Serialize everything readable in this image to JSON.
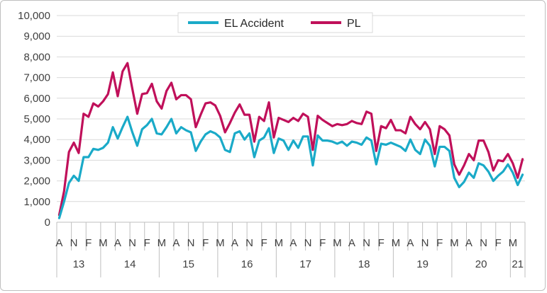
{
  "chart_data": {
    "type": "line",
    "title": "",
    "xlabel": "",
    "ylabel": "",
    "ylim": [
      0,
      10000
    ],
    "y_ticks": [
      "0",
      "1,000",
      "2,000",
      "3,000",
      "4,000",
      "5,000",
      "6,000",
      "7,000",
      "8,000",
      "9,000",
      "10,000"
    ],
    "grid": "horizontal",
    "legend_position": "top-center",
    "month_labels": [
      "A",
      "N",
      "F",
      "M",
      "A",
      "N",
      "F",
      "M",
      "A",
      "N",
      "F",
      "M",
      "A",
      "N",
      "F",
      "M",
      "A",
      "N",
      "F",
      "M",
      "A",
      "N",
      "F",
      "M",
      "A",
      "N",
      "F",
      "M",
      "A",
      "N",
      "F",
      "M"
    ],
    "years": [
      "13",
      "14",
      "15",
      "16",
      "17",
      "18",
      "19",
      "20",
      "21"
    ],
    "x_start": "2013-04",
    "series": [
      {
        "name": "EL Accident",
        "color": "#1aaac8",
        "values": [
          200,
          1000,
          1900,
          2250,
          2000,
          3150,
          3150,
          3550,
          3500,
          3600,
          3850,
          4600,
          4050,
          4600,
          5100,
          4350,
          3700,
          4500,
          4700,
          5000,
          4300,
          4250,
          4600,
          5000,
          4300,
          4600,
          4450,
          4350,
          3450,
          3900,
          4250,
          4400,
          4300,
          4100,
          3500,
          3400,
          4300,
          4400,
          4000,
          4300,
          3150,
          3950,
          4100,
          4550,
          3350,
          4050,
          3950,
          3500,
          3950,
          3600,
          4150,
          4150,
          2750,
          4200,
          3950,
          3950,
          3900,
          3800,
          3900,
          3700,
          3900,
          3850,
          3750,
          4100,
          3950,
          2800,
          3800,
          3750,
          3850,
          3750,
          3650,
          3450,
          4000,
          3500,
          3300,
          4000,
          3700,
          2700,
          3650,
          3650,
          3450,
          2150,
          1700,
          1950,
          2400,
          2150,
          2850,
          2750,
          2450,
          2000,
          2250,
          2450,
          2800,
          2400,
          1800,
          2300
        ]
      },
      {
        "name": "PL",
        "color": "#c0105a",
        "values": [
          350,
          1500,
          3400,
          3850,
          3350,
          5250,
          5100,
          5750,
          5600,
          5850,
          6200,
          7250,
          6100,
          7300,
          7700,
          6450,
          5250,
          6200,
          6250,
          6700,
          5850,
          5500,
          6350,
          6750,
          5950,
          6150,
          6150,
          5950,
          4600,
          5200,
          5750,
          5800,
          5650,
          5150,
          4350,
          4800,
          5300,
          5700,
          5200,
          5200,
          3900,
          5100,
          4900,
          5800,
          4100,
          5050,
          4950,
          4850,
          5050,
          4900,
          5250,
          5100,
          3500,
          5150,
          4950,
          4800,
          4650,
          4750,
          4700,
          4750,
          4900,
          4800,
          4750,
          5350,
          5250,
          3450,
          4650,
          4550,
          4950,
          4450,
          4450,
          4300,
          5100,
          4750,
          4500,
          4850,
          4500,
          3300,
          4650,
          4500,
          4200,
          2800,
          2300,
          2750,
          3300,
          3000,
          3950,
          3950,
          3400,
          2500,
          3000,
          2950,
          3300,
          2850,
          2150,
          3050
        ]
      }
    ]
  }
}
